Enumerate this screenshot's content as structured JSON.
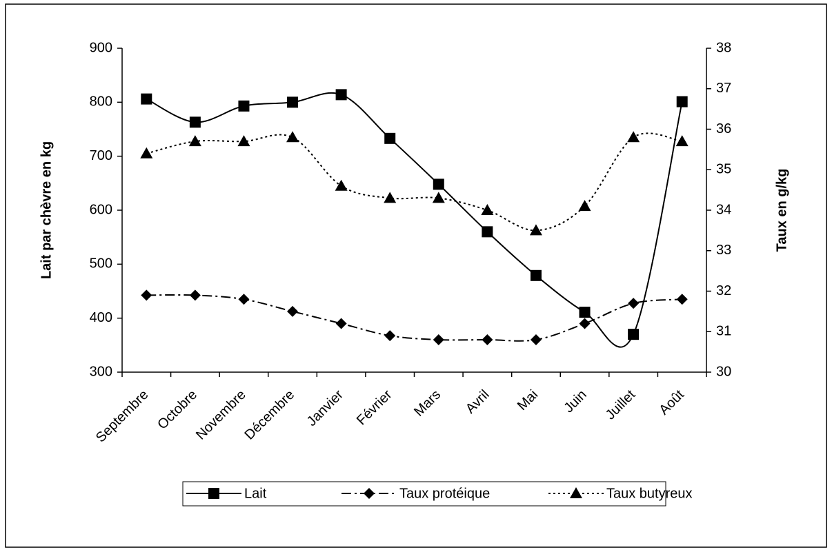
{
  "chart_data": {
    "type": "line",
    "categories": [
      "Septembre",
      "Octobre",
      "Novembre",
      "Décembre",
      "Janvier",
      "Février",
      "Mars",
      "Avril",
      "Mai",
      "Juin",
      "Juillet",
      "Août"
    ],
    "ylabel": "Lait par chèvre en kg",
    "y2label": "Taux en g/kg",
    "ylim": [
      300,
      900
    ],
    "yticks": [
      300,
      400,
      500,
      600,
      700,
      800,
      900
    ],
    "y2lim": [
      30,
      38
    ],
    "y2ticks": [
      30,
      31,
      32,
      33,
      34,
      35,
      36,
      37,
      38
    ],
    "legend": "bottom",
    "series": [
      {
        "name": "Lait",
        "color": "#000000",
        "marker": "square",
        "line_style": "solid",
        "values": [
          806,
          763,
          793,
          800,
          814,
          733,
          648,
          560,
          479,
          411,
          370,
          801
        ]
      },
      {
        "name": "Taux protéique",
        "color": "#000000",
        "marker": "diamond",
        "line_style": "dash-dot",
        "axis": "y2",
        "values": [
          31.9,
          31.9,
          31.8,
          31.5,
          31.2,
          30.9,
          30.8,
          30.8,
          30.8,
          31.2,
          31.7,
          31.8
        ]
      },
      {
        "name": "Taux butyreux",
        "color": "#000000",
        "marker": "triangle",
        "line_style": "dotted",
        "axis": "y2",
        "values": [
          35.4,
          35.7,
          35.7,
          35.8,
          34.6,
          34.3,
          34.3,
          34.0,
          33.5,
          34.1,
          35.8,
          35.7
        ]
      }
    ]
  }
}
